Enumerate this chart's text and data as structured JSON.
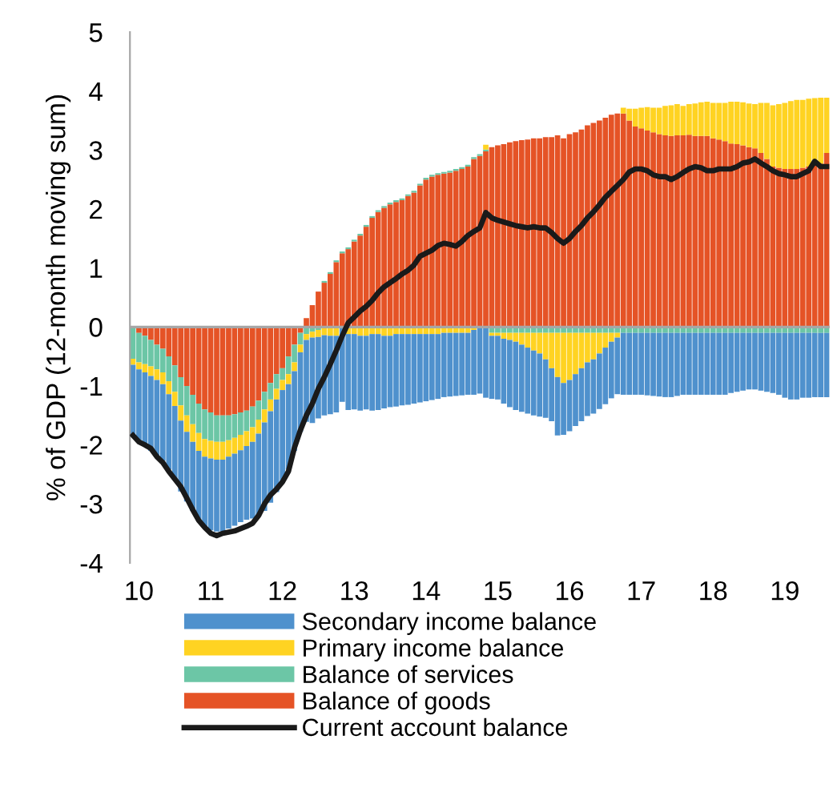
{
  "chart_data": {
    "type": "bar",
    "stacked": true,
    "ylabel": "% of GDP (12-month moving sum)",
    "ylim": [
      -4,
      5
    ],
    "yticks": [
      -4,
      -3,
      -2,
      -1,
      0,
      1,
      2,
      3,
      4,
      5
    ],
    "legend": "bottom",
    "categories": [
      null,
      "10",
      null,
      null,
      null,
      null,
      null,
      null,
      null,
      null,
      null,
      null,
      null,
      "11",
      null,
      null,
      null,
      null,
      null,
      null,
      null,
      null,
      null,
      null,
      null,
      "12",
      null,
      null,
      null,
      null,
      null,
      null,
      null,
      null,
      null,
      null,
      null,
      "13",
      null,
      null,
      null,
      null,
      null,
      null,
      null,
      null,
      null,
      null,
      null,
      "14",
      null,
      null,
      null,
      null,
      null,
      null,
      null,
      null,
      null,
      null,
      null,
      "15",
      null,
      null,
      null,
      null,
      null,
      null,
      null,
      null,
      null,
      null,
      null,
      "16",
      null,
      null,
      null,
      null,
      null,
      null,
      null,
      null,
      null,
      null,
      null,
      "17",
      null,
      null,
      null,
      null,
      null,
      null,
      null,
      null,
      null,
      null,
      null,
      "18",
      null,
      null,
      null,
      null,
      null,
      null,
      null,
      null,
      null,
      null,
      null,
      "19",
      null,
      null,
      null,
      null,
      null,
      null,
      null
    ],
    "series": [
      {
        "name": "Balance of goods",
        "color": "#e55326",
        "values": [
          null,
          -0.1,
          -0.15,
          -0.22,
          -0.3,
          -0.37,
          -0.5,
          -0.65,
          -0.85,
          -1.0,
          -1.15,
          -1.3,
          -1.4,
          -1.45,
          -1.5,
          -1.5,
          -1.5,
          -1.48,
          -1.45,
          -1.42,
          -1.35,
          -1.25,
          -1.1,
          -0.95,
          -0.8,
          -0.7,
          -0.5,
          -0.3,
          -0.1,
          0.15,
          0.37,
          0.6,
          0.75,
          0.9,
          1.1,
          1.25,
          1.32,
          1.45,
          1.55,
          1.7,
          1.85,
          1.95,
          2.02,
          2.08,
          2.12,
          2.15,
          2.22,
          2.28,
          2.4,
          2.5,
          2.55,
          2.58,
          2.6,
          2.62,
          2.65,
          2.68,
          2.72,
          2.85,
          2.9,
          2.98,
          3.05,
          3.08,
          3.1,
          3.13,
          3.15,
          3.17,
          3.18,
          3.2,
          3.2,
          3.22,
          3.22,
          3.25,
          3.2,
          3.27,
          3.3,
          3.35,
          3.42,
          3.46,
          3.5,
          3.55,
          3.6,
          3.62,
          3.62,
          3.5,
          3.4,
          3.37,
          3.33,
          3.3,
          3.27,
          3.25,
          3.24,
          3.25,
          3.25,
          3.26,
          3.24,
          3.24,
          3.24,
          3.2,
          3.18,
          3.15,
          3.11,
          3.1,
          3.08,
          3.05,
          3.03,
          2.95,
          2.85,
          2.72,
          2.7,
          2.68,
          2.68,
          2.68,
          2.7,
          2.72,
          2.75,
          2.77,
          2.95
        ]
      },
      {
        "name": "Balance of services",
        "color": "#6cc6a6",
        "values": [
          -0.54,
          -0.5,
          -0.48,
          -0.45,
          -0.42,
          -0.4,
          -0.42,
          -0.45,
          -0.48,
          -0.5,
          -0.5,
          -0.5,
          -0.5,
          -0.48,
          -0.45,
          -0.45,
          -0.42,
          -0.4,
          -0.38,
          -0.35,
          -0.35,
          -0.32,
          -0.3,
          -0.28,
          -0.25,
          -0.2,
          -0.3,
          -0.3,
          -0.2,
          -0.12,
          -0.08,
          -0.05,
          0.03,
          0.03,
          0.03,
          0.03,
          0.03,
          0.03,
          0.03,
          0.03,
          0.03,
          0.03,
          0.03,
          0.03,
          0.03,
          0.03,
          0.03,
          0.03,
          0.03,
          0.03,
          0.03,
          0.03,
          0.03,
          0.03,
          0.03,
          0.03,
          0.03,
          0.03,
          0.03,
          0.03,
          -0.1,
          -0.1,
          -0.1,
          -0.1,
          -0.1,
          -0.1,
          -0.1,
          -0.1,
          -0.1,
          -0.1,
          -0.1,
          -0.1,
          -0.1,
          -0.1,
          -0.1,
          -0.1,
          -0.1,
          -0.1,
          -0.1,
          -0.1,
          -0.1,
          -0.1,
          -0.1,
          -0.1,
          -0.1,
          -0.1,
          -0.1,
          -0.1,
          -0.1,
          -0.1,
          -0.1,
          -0.1,
          -0.1,
          -0.1,
          -0.1,
          -0.1,
          -0.1,
          -0.1,
          -0.1,
          -0.1,
          -0.1,
          -0.1,
          -0.1,
          -0.1,
          -0.1,
          -0.1,
          -0.1,
          -0.1,
          -0.1,
          -0.1,
          -0.1,
          -0.1,
          -0.1,
          -0.1,
          -0.1,
          -0.1,
          -0.1
        ]
      },
      {
        "name": "Primary income balance",
        "color": "#ffd322",
        "values": [
          -0.1,
          -0.12,
          -0.14,
          -0.16,
          -0.18,
          -0.2,
          -0.22,
          -0.24,
          -0.26,
          -0.28,
          -0.3,
          -0.3,
          -0.3,
          -0.3,
          -0.3,
          -0.3,
          -0.28,
          -0.27,
          -0.26,
          -0.25,
          -0.25,
          -0.24,
          -0.22,
          -0.2,
          -0.18,
          -0.17,
          -0.17,
          -0.15,
          -0.13,
          -0.1,
          -0.1,
          -0.12,
          -0.14,
          -0.15,
          -0.15,
          null,
          -0.12,
          -0.12,
          -0.15,
          -0.15,
          -0.12,
          -0.12,
          -0.15,
          -0.15,
          -0.12,
          -0.12,
          -0.12,
          -0.12,
          -0.12,
          -0.12,
          -0.12,
          -0.12,
          -0.1,
          -0.1,
          -0.1,
          -0.1,
          -0.1,
          -0.05,
          null,
          0.08,
          -0.05,
          -0.05,
          -0.1,
          -0.12,
          -0.15,
          -0.2,
          -0.25,
          -0.3,
          -0.35,
          -0.45,
          -0.6,
          -0.75,
          -0.85,
          -0.8,
          -0.7,
          -0.6,
          -0.5,
          -0.45,
          -0.35,
          -0.25,
          -0.15,
          -0.08,
          0.1,
          0.2,
          0.3,
          0.35,
          0.4,
          0.42,
          0.45,
          0.5,
          0.52,
          0.53,
          0.5,
          0.52,
          0.55,
          0.57,
          0.58,
          0.6,
          0.62,
          0.65,
          0.71,
          0.72,
          0.73,
          0.74,
          0.75,
          0.85,
          0.95,
          1.04,
          1.08,
          1.12,
          1.15,
          1.17,
          1.15,
          1.15,
          1.13,
          1.12,
          0.94
        ]
      },
      {
        "name": "Secondary income balance",
        "color": "#4f91cd",
        "values": [
          -1.2,
          -1.22,
          -1.25,
          -1.27,
          -1.3,
          -1.3,
          -1.28,
          -1.25,
          -1.2,
          -1.18,
          -1.17,
          -1.18,
          -1.2,
          -1.22,
          -1.22,
          -1.22,
          -1.22,
          -1.22,
          -1.22,
          -1.25,
          -1.3,
          -1.4,
          -1.5,
          -1.55,
          -1.57,
          -1.55,
          -1.45,
          -1.35,
          -1.35,
          -1.39,
          -1.45,
          -1.38,
          -1.36,
          -1.33,
          -1.3,
          -1.27,
          -1.29,
          -1.28,
          -1.27,
          -1.25,
          -1.3,
          -1.29,
          -1.23,
          -1.21,
          -1.23,
          -1.21,
          -1.2,
          -1.18,
          -1.16,
          -1.14,
          -1.12,
          -1.1,
          -1.09,
          -1.08,
          -1.07,
          -1.06,
          -1.05,
          -1.1,
          -1.13,
          -1.2,
          -1.07,
          -1.08,
          -1.1,
          -1.14,
          -1.16,
          -1.14,
          -1.12,
          -1.1,
          -1.07,
          -0.99,
          -0.9,
          -0.99,
          -0.88,
          -0.87,
          -0.88,
          -0.9,
          -0.91,
          -0.92,
          -0.94,
          -0.96,
          -0.96,
          -0.96,
          -1.05,
          -1.05,
          -1.05,
          -1.05,
          -1.06,
          -1.07,
          -1.08,
          -1.09,
          -1.09,
          -1.07,
          -1.05,
          -1.05,
          -1.05,
          -1.05,
          -1.05,
          -1.05,
          -1.05,
          -1.05,
          -1.02,
          -1.0,
          -0.98,
          -0.96,
          -0.96,
          -0.98,
          -1.0,
          -1.02,
          -1.05,
          -1.1,
          -1.13,
          -1.13,
          -1.1,
          -1.1,
          -1.09,
          -1.09,
          -1.09
        ]
      },
      {
        "name": "Current account balance",
        "type": "line",
        "color": "#1a1a1a",
        "values": [
          -1.84,
          -1.95,
          -2.0,
          -2.06,
          -2.2,
          -2.3,
          -2.45,
          -2.58,
          -2.71,
          -2.9,
          -3.1,
          -3.28,
          -3.4,
          -3.5,
          -3.54,
          -3.5,
          -3.48,
          -3.46,
          -3.42,
          -3.38,
          -3.33,
          -3.2,
          -3.0,
          -2.85,
          -2.75,
          -2.63,
          -2.45,
          -2.05,
          -1.75,
          -1.5,
          -1.3,
          -1.05,
          -0.85,
          -0.63,
          -0.4,
          -0.15,
          0.07,
          0.17,
          0.27,
          0.35,
          0.45,
          0.58,
          0.68,
          0.75,
          0.82,
          0.9,
          0.96,
          1.05,
          1.2,
          1.25,
          1.3,
          1.38,
          1.42,
          1.4,
          1.37,
          1.45,
          1.55,
          1.62,
          1.68,
          1.94,
          1.85,
          1.81,
          1.78,
          1.75,
          1.72,
          1.7,
          1.68,
          1.7,
          1.68,
          1.68,
          1.6,
          1.5,
          1.42,
          1.5,
          1.62,
          1.72,
          1.85,
          1.95,
          2.07,
          2.2,
          2.3,
          2.4,
          2.5,
          2.63,
          2.68,
          2.68,
          2.65,
          2.58,
          2.55,
          2.55,
          2.5,
          2.55,
          2.62,
          2.68,
          2.72,
          2.7,
          2.65,
          2.65,
          2.68,
          2.68,
          2.68,
          2.72,
          2.78,
          2.8,
          2.85,
          2.78,
          2.72,
          2.65,
          2.6,
          2.58,
          2.55,
          2.55,
          2.6,
          2.65,
          2.81,
          2.72,
          2.72
        ]
      }
    ]
  }
}
